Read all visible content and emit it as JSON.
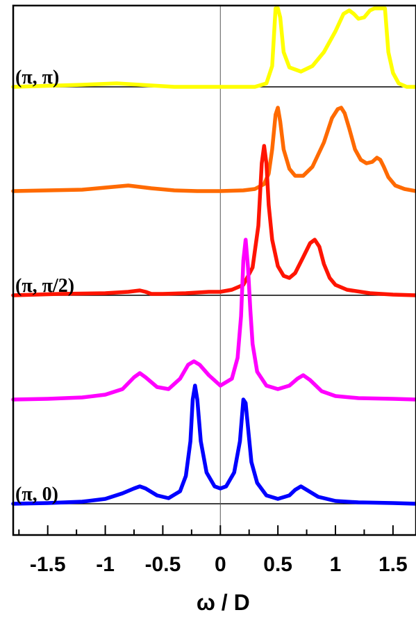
{
  "chart_data": {
    "type": "line",
    "xlabel": "ω / D",
    "ylabel": "",
    "title": "",
    "xlim": [
      -1.8,
      1.7
    ],
    "xticks": [
      -1.5,
      -1,
      -0.5,
      0,
      0.5,
      1,
      1.5
    ],
    "xtick_labels": [
      "-1.5",
      "-1",
      "-0.5",
      "0",
      "0.5",
      "1",
      "1.5"
    ],
    "grid": false,
    "legend": "none",
    "series": [
      {
        "name": "(π, π)",
        "color": "#ffff00",
        "baseline": 7.1,
        "x": [
          -1.8,
          -1.2,
          -0.9,
          -0.7,
          -0.4,
          0,
          0.2,
          0.3,
          0.4,
          0.45,
          0.48,
          0.5,
          0.52,
          0.55,
          0.6,
          0.7,
          0.8,
          0.9,
          1.0,
          1.07,
          1.12,
          1.16,
          1.2,
          1.25,
          1.3,
          1.34,
          1.37,
          1.39,
          1.41,
          1.43,
          1.46,
          1.5,
          1.55,
          1.62,
          1.7
        ],
        "values": [
          0,
          0.03,
          0.05,
          0.03,
          0,
          0,
          0,
          0,
          0.05,
          0.3,
          1.2,
          1.45,
          1.0,
          0.5,
          0.28,
          0.22,
          0.3,
          0.5,
          0.8,
          1.05,
          1.1,
          1.05,
          0.98,
          1.0,
          1.1,
          1.4,
          1.7,
          1.95,
          1.75,
          1.2,
          0.5,
          0.2,
          0.05,
          0,
          0
        ]
      },
      {
        "name": "",
        "color": "#ff6a00",
        "baseline": 5.6,
        "x": [
          -1.8,
          -1.2,
          -1.0,
          -0.8,
          -0.6,
          -0.4,
          -0.2,
          0,
          0.2,
          0.3,
          0.38,
          0.42,
          0.45,
          0.48,
          0.5,
          0.52,
          0.55,
          0.6,
          0.65,
          0.72,
          0.8,
          0.9,
          0.97,
          1.02,
          1.05,
          1.08,
          1.12,
          1.17,
          1.22,
          1.27,
          1.32,
          1.36,
          1.39,
          1.42,
          1.46,
          1.52,
          1.6,
          1.7
        ],
        "values": [
          0,
          0.02,
          0.05,
          0.08,
          0.04,
          0.01,
          0,
          0,
          0.01,
          0.03,
          0.1,
          0.25,
          0.6,
          1.1,
          1.2,
          1.0,
          0.6,
          0.32,
          0.22,
          0.22,
          0.35,
          0.7,
          1.05,
          1.18,
          1.2,
          1.12,
          0.9,
          0.6,
          0.45,
          0.4,
          0.42,
          0.48,
          0.45,
          0.35,
          0.2,
          0.08,
          0.03,
          0
        ]
      },
      {
        "name": "(π, π/2)",
        "color": "#ff1400",
        "baseline": 4.1,
        "x": [
          -1.8,
          -1.4,
          -1.0,
          -0.8,
          -0.7,
          -0.65,
          -0.6,
          -0.5,
          -0.3,
          -0.1,
          0,
          0.1,
          0.2,
          0.28,
          0.33,
          0.36,
          0.38,
          0.4,
          0.42,
          0.45,
          0.5,
          0.55,
          0.6,
          0.65,
          0.72,
          0.78,
          0.82,
          0.86,
          0.9,
          0.95,
          1.0,
          1.1,
          1.3,
          1.5,
          1.7
        ],
        "values": [
          0,
          0.02,
          0.03,
          0.05,
          0.07,
          0.05,
          0.02,
          0.02,
          0.03,
          0.05,
          0.05,
          0.08,
          0.15,
          0.4,
          1.0,
          1.9,
          2.15,
          1.9,
          1.3,
          0.8,
          0.42,
          0.28,
          0.25,
          0.32,
          0.55,
          0.75,
          0.8,
          0.7,
          0.45,
          0.25,
          0.15,
          0.08,
          0.03,
          0.01,
          0
        ]
      },
      {
        "name": "",
        "color": "#ff00ff",
        "baseline": 2.6,
        "x": [
          -1.8,
          -1.5,
          -1.2,
          -1.0,
          -0.85,
          -0.75,
          -0.7,
          -0.65,
          -0.55,
          -0.45,
          -0.35,
          -0.28,
          -0.23,
          -0.18,
          -0.1,
          0,
          0.1,
          0.15,
          0.18,
          0.2,
          0.22,
          0.24,
          0.26,
          0.28,
          0.32,
          0.4,
          0.5,
          0.6,
          0.67,
          0.72,
          0.78,
          0.88,
          1.0,
          1.2,
          1.5,
          1.7
        ],
        "values": [
          0,
          0.01,
          0.03,
          0.07,
          0.15,
          0.32,
          0.38,
          0.32,
          0.18,
          0.15,
          0.3,
          0.5,
          0.55,
          0.5,
          0.35,
          0.2,
          0.3,
          0.6,
          1.2,
          2.0,
          2.3,
          1.9,
          1.3,
          0.8,
          0.4,
          0.2,
          0.15,
          0.2,
          0.3,
          0.35,
          0.28,
          0.12,
          0.05,
          0.02,
          0.01,
          0
        ]
      },
      {
        "name": "(π, 0)",
        "color": "#0000ff",
        "baseline": 1.1,
        "x": [
          -1.8,
          -1.5,
          -1.2,
          -1.0,
          -0.85,
          -0.75,
          -0.7,
          -0.65,
          -0.55,
          -0.45,
          -0.35,
          -0.3,
          -0.26,
          -0.24,
          -0.22,
          -0.2,
          -0.17,
          -0.12,
          -0.05,
          0,
          0.05,
          0.12,
          0.17,
          0.2,
          0.22,
          0.24,
          0.27,
          0.32,
          0.4,
          0.5,
          0.6,
          0.65,
          0.7,
          0.75,
          0.85,
          1.0,
          1.2,
          1.5,
          1.7
        ],
        "values": [
          0,
          0.01,
          0.03,
          0.07,
          0.15,
          0.22,
          0.25,
          0.22,
          0.12,
          0.08,
          0.18,
          0.4,
          0.9,
          1.5,
          1.7,
          1.5,
          0.9,
          0.45,
          0.25,
          0.22,
          0.25,
          0.45,
          0.9,
          1.5,
          1.45,
          1.1,
          0.6,
          0.3,
          0.12,
          0.07,
          0.12,
          0.2,
          0.25,
          0.2,
          0.1,
          0.04,
          0.02,
          0.01,
          0
        ]
      }
    ]
  }
}
